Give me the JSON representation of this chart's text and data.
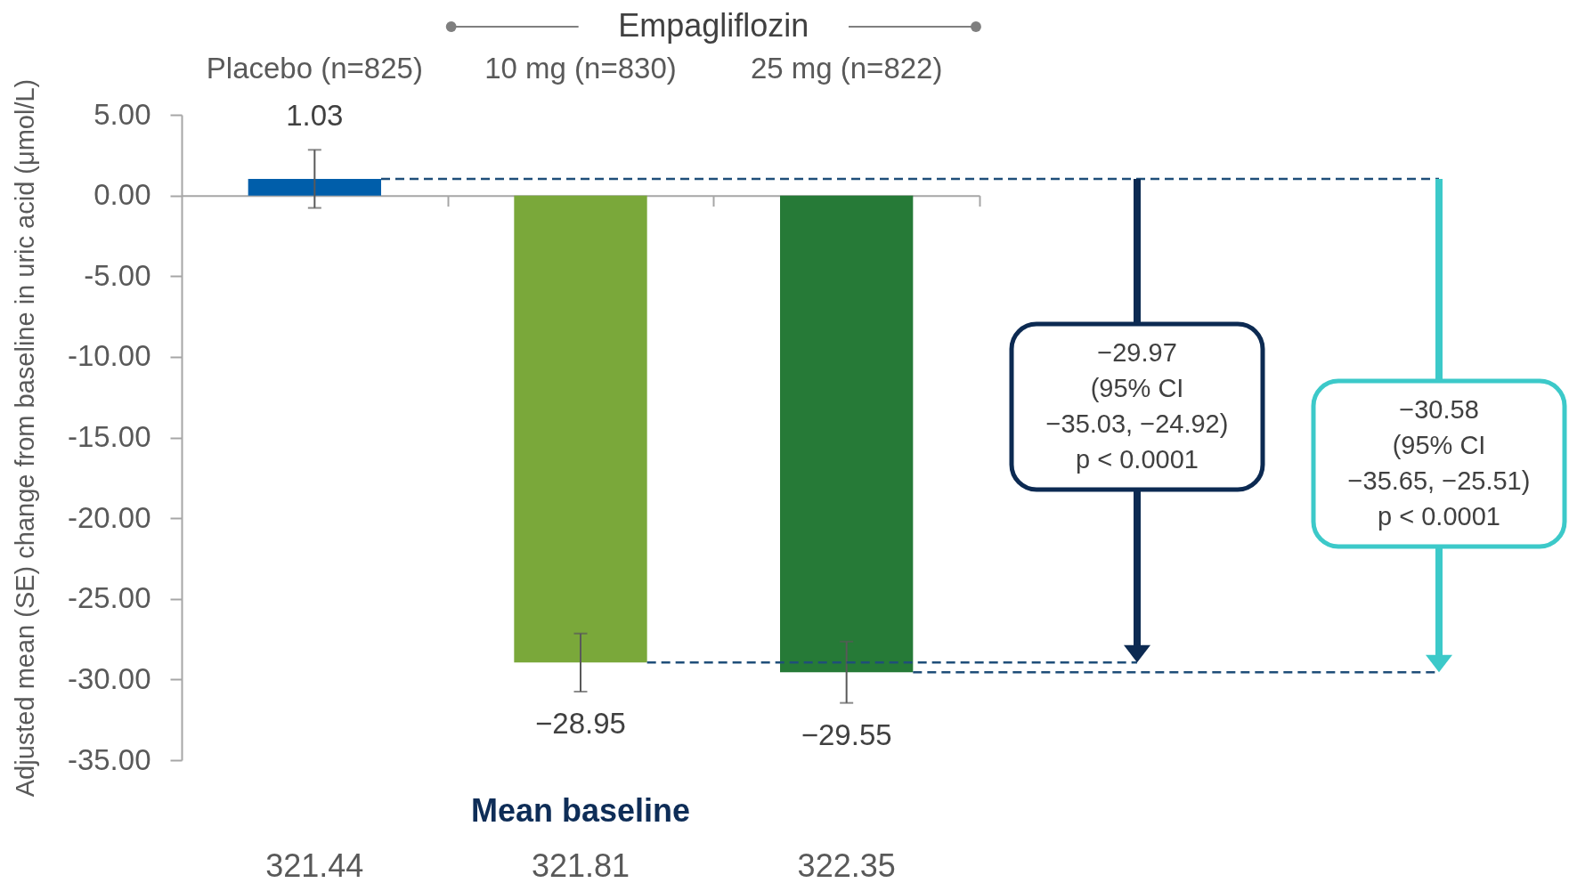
{
  "chart_data": {
    "type": "bar",
    "categories": [
      "Placebo (n=825)",
      "10 mg (n=830)",
      "25 mg (n=822)"
    ],
    "values": [
      1.03,
      -28.95,
      -29.55
    ],
    "colors": [
      "#005eaa",
      "#7aa83a",
      "#267a37"
    ],
    "errors": [
      1.8,
      1.8,
      1.9
    ],
    "value_labels": [
      "1.03",
      "−28.95",
      "−29.55"
    ],
    "ylabel": "Adjusted mean (SE) change from baseline in uric acid (μmol/L)",
    "ylim": [
      -35,
      5
    ],
    "yticks": [
      {
        "value": 5,
        "label": "5.00"
      },
      {
        "value": 0,
        "label": "0.00"
      },
      {
        "value": -5,
        "label": "-5.00"
      },
      {
        "value": -10,
        "label": "-10.00"
      },
      {
        "value": -15,
        "label": "-15.00"
      },
      {
        "value": -20,
        "label": "-20.00"
      },
      {
        "value": -25,
        "label": "-25.00"
      },
      {
        "value": -30,
        "label": "-30.00"
      },
      {
        "value": -35,
        "label": "-35.00"
      }
    ],
    "ref_lines": [
      {
        "axis": "y",
        "value": 1.03,
        "color": "#1f4e79",
        "line_style": "dashed"
      },
      {
        "axis": "y",
        "value": -28.95,
        "color": "#1f4e79",
        "line_style": "dashed"
      },
      {
        "axis": "y",
        "value": -29.55,
        "color": "#1f4e79",
        "line_style": "dashed"
      }
    ],
    "annotations": [
      "Empagliflozin",
      "Mean baseline",
      "321.44",
      "321.81",
      "322.35",
      "−29.97\n(95% CI\n−35.03, −24.92)\np < 0.0001",
      "−30.58\n(95% CI\n−35.65, −25.51)\np < 0.0001"
    ]
  }
}
